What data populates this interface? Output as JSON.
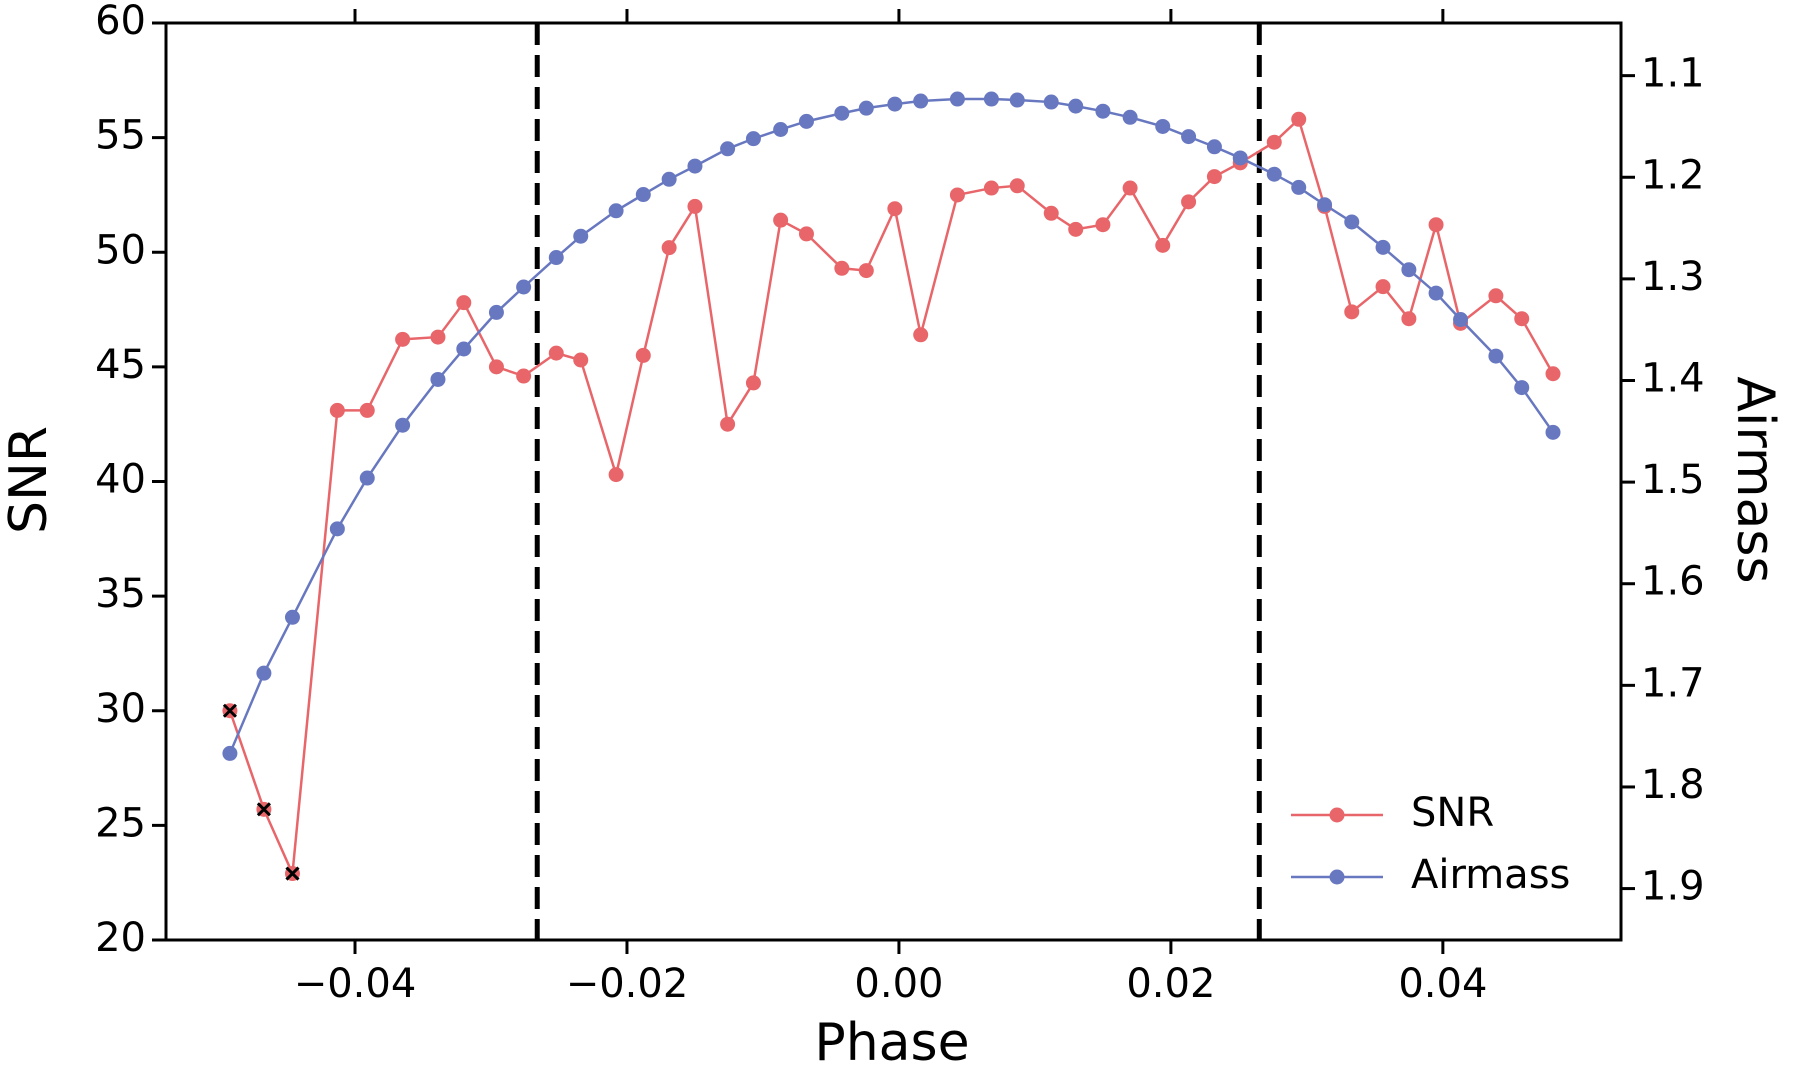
{
  "chart_data": {
    "type": "line",
    "xlabel": "Phase",
    "ylabel": "SNR",
    "y2label": "Airmass",
    "x": [
      -0.0492,
      -0.0467,
      -0.0446,
      -0.0413,
      -0.0391,
      -0.0365,
      -0.0339,
      -0.032,
      -0.0296,
      -0.0276,
      -0.0252,
      -0.0234,
      -0.0208,
      -0.0188,
      -0.0169,
      -0.015,
      -0.0126,
      -0.0107,
      -0.0087,
      -0.0068,
      -0.0042,
      -0.0024,
      -0.0003,
      0.0016,
      0.0043,
      0.0068,
      0.0087,
      0.0112,
      0.013,
      0.015,
      0.017,
      0.0194,
      0.0213,
      0.0232,
      0.0251,
      0.0276,
      0.0294,
      0.0313,
      0.0333,
      0.0356,
      0.0375,
      0.0395,
      0.0413,
      0.0439,
      0.0458,
      0.0481
    ],
    "series": [
      {
        "name": "SNR",
        "color": "#e8666a",
        "values": [
          30.0,
          25.7,
          22.9,
          43.1,
          43.1,
          46.2,
          46.3,
          47.8,
          45.0,
          44.6,
          45.6,
          45.3,
          40.3,
          45.5,
          50.2,
          52.0,
          42.5,
          44.3,
          51.4,
          50.8,
          49.3,
          49.2,
          51.9,
          46.4,
          52.5,
          52.8,
          52.9,
          51.7,
          51.0,
          51.2,
          52.8,
          50.3,
          52.2,
          53.3,
          53.9,
          54.8,
          55.8,
          52.0,
          47.4,
          48.5,
          47.1,
          51.2,
          46.9,
          48.1,
          47.1,
          44.7
        ],
        "flagged_indices": [
          0,
          1,
          2
        ]
      },
      {
        "name": "Airmass",
        "color": "#6878c0",
        "axis": "y2",
        "values": [
          1.767,
          1.688,
          1.633,
          1.546,
          1.496,
          1.444,
          1.399,
          1.369,
          1.333,
          1.308,
          1.279,
          1.258,
          1.233,
          1.217,
          1.202,
          1.189,
          1.172,
          1.162,
          1.153,
          1.145,
          1.137,
          1.132,
          1.128,
          1.125,
          1.123,
          1.123,
          1.124,
          1.126,
          1.13,
          1.135,
          1.141,
          1.15,
          1.16,
          1.17,
          1.181,
          1.197,
          1.21,
          1.227,
          1.244,
          1.269,
          1.291,
          1.314,
          1.34,
          1.376,
          1.407,
          1.451
        ]
      }
    ],
    "vlines": [
      -0.0266,
      0.0265
    ],
    "xlim": [
      -0.0539,
      0.0531
    ],
    "xticks": [
      {
        "value": -0.04,
        "label": "−0.04"
      },
      {
        "value": -0.02,
        "label": "−0.02"
      },
      {
        "value": 0,
        "label": "0.00"
      },
      0.02,
      0.04
    ],
    "ylim": [
      20,
      60
    ],
    "yticks": [
      20,
      25,
      30,
      35,
      40,
      45,
      50,
      55,
      60
    ],
    "y2lim": [
      1.9506,
      1.0482
    ],
    "y2ticks": [
      1.1,
      1.2,
      1.3,
      1.4,
      1.5,
      1.6,
      1.7,
      1.8,
      1.9
    ],
    "legend": "lower right"
  }
}
